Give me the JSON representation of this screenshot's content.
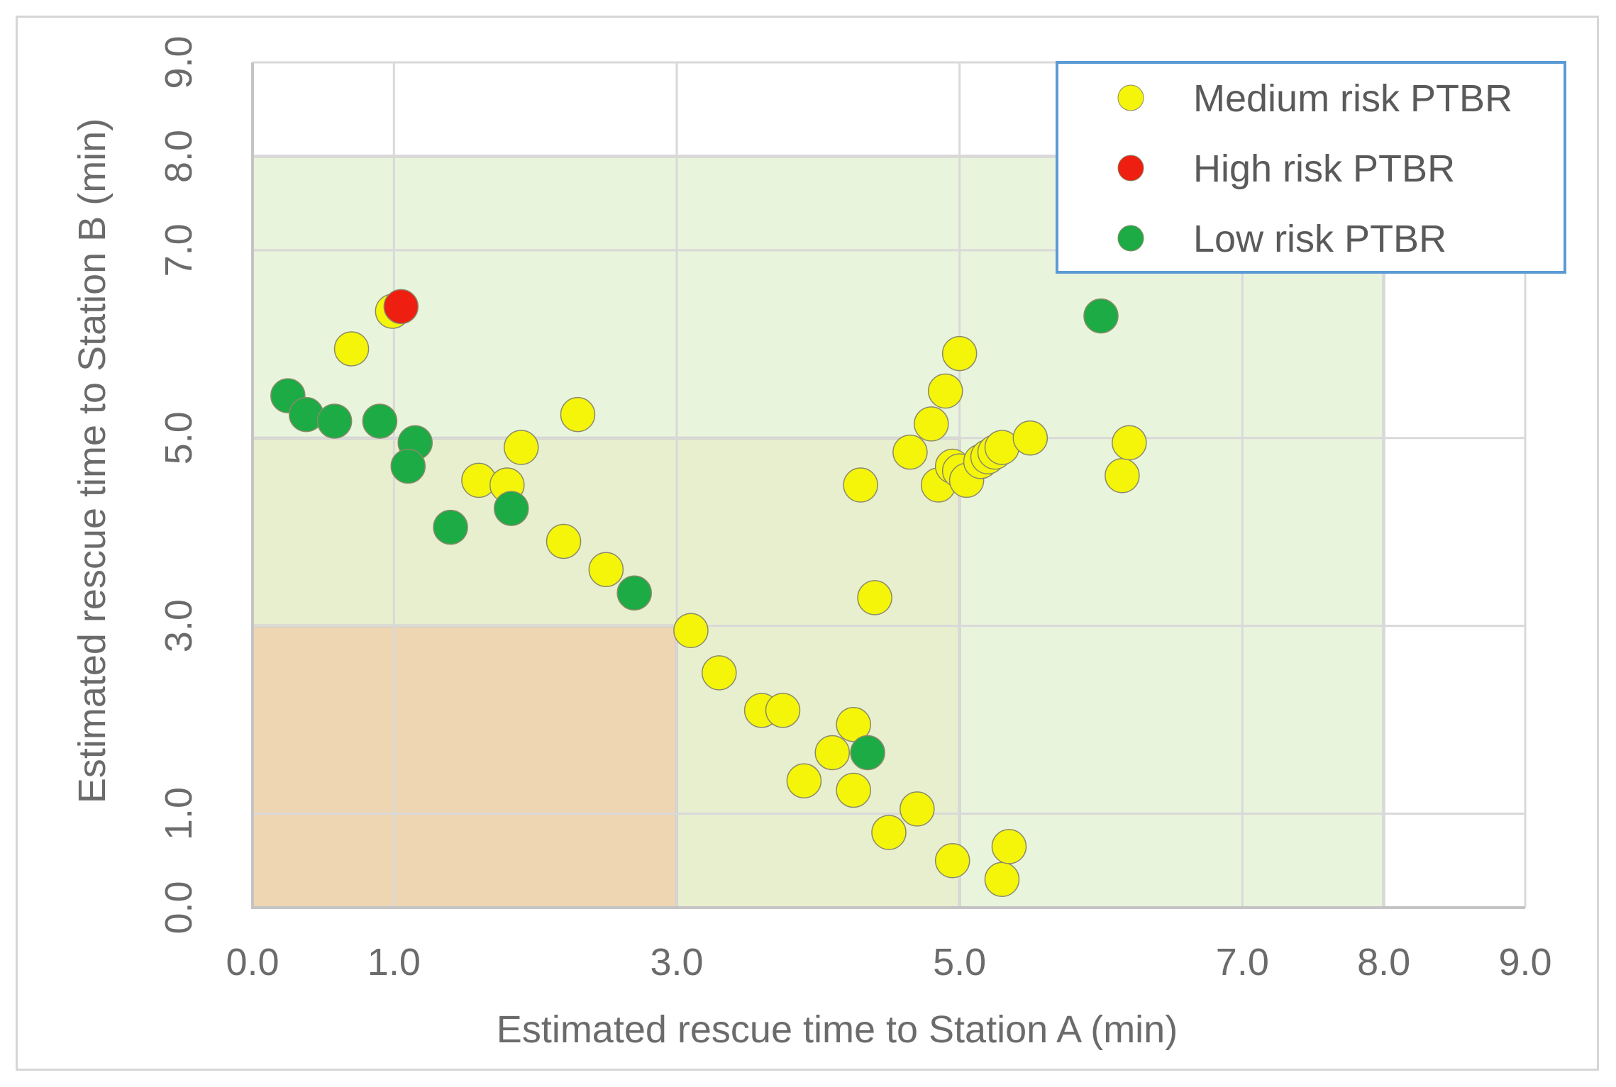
{
  "chart_data": {
    "type": "scatter",
    "xlabel": "Estimated rescue time to Station A (min)",
    "ylabel": "Estimated rescue time to Station B (min)",
    "xlim": [
      0,
      9
    ],
    "ylim": [
      0,
      9
    ],
    "x_ticks": [
      0,
      1,
      3,
      5,
      7,
      8,
      9
    ],
    "y_ticks": [
      0,
      1,
      3,
      5,
      7,
      8,
      9
    ],
    "tick_labels": [
      "0.0",
      "1.0",
      "3.0",
      "5.0",
      "7.0",
      "8.0",
      "9.0"
    ],
    "grid": true,
    "legend_position": "top-right",
    "zones": [
      {
        "name": "outer-zone",
        "x": [
          0,
          8
        ],
        "y": [
          0,
          8
        ],
        "color": "#e9f4dc"
      },
      {
        "name": "middle-zone",
        "x": [
          0,
          5
        ],
        "y": [
          0,
          5
        ],
        "color": "#e8efcf"
      },
      {
        "name": "inner-zone",
        "x": [
          0,
          3
        ],
        "y": [
          0,
          3
        ],
        "color": "#eed6b3"
      }
    ],
    "series": [
      {
        "name": "Medium risk PTBR",
        "color": "#f5f50a",
        "points": [
          [
            0.7,
            5.95
          ],
          [
            0.99,
            6.35
          ],
          [
            2.3,
            5.25
          ],
          [
            1.6,
            4.55
          ],
          [
            1.8,
            4.5
          ],
          [
            1.9,
            4.9
          ],
          [
            2.2,
            3.9
          ],
          [
            2.5,
            3.6
          ],
          [
            3.1,
            2.95
          ],
          [
            3.3,
            2.5
          ],
          [
            3.6,
            2.1
          ],
          [
            3.75,
            2.1
          ],
          [
            3.9,
            1.35
          ],
          [
            4.1,
            1.65
          ],
          [
            4.25,
            1.95
          ],
          [
            4.25,
            1.25
          ],
          [
            4.3,
            4.5
          ],
          [
            4.4,
            3.3
          ],
          [
            4.5,
            0.8
          ],
          [
            4.65,
            4.85
          ],
          [
            4.7,
            1.05
          ],
          [
            4.8,
            5.15
          ],
          [
            4.85,
            4.5
          ],
          [
            4.9,
            5.5
          ],
          [
            4.95,
            4.7
          ],
          [
            5.0,
            5.9
          ],
          [
            5.0,
            4.65
          ],
          [
            5.05,
            4.55
          ],
          [
            5.15,
            4.75
          ],
          [
            5.2,
            4.8
          ],
          [
            5.25,
            4.85
          ],
          [
            5.3,
            4.9
          ],
          [
            5.5,
            5.0
          ],
          [
            4.95,
            0.5
          ],
          [
            5.3,
            0.3
          ],
          [
            5.35,
            0.65
          ],
          [
            6.15,
            4.6
          ],
          [
            6.2,
            4.95
          ]
        ]
      },
      {
        "name": "High risk PTBR",
        "color": "#ee1e10",
        "points": [
          [
            1.05,
            6.4
          ]
        ]
      },
      {
        "name": "Low risk PTBR",
        "color": "#1cab44",
        "points": [
          [
            0.25,
            5.45
          ],
          [
            0.38,
            5.25
          ],
          [
            0.58,
            5.18
          ],
          [
            0.9,
            5.18
          ],
          [
            1.15,
            4.95
          ],
          [
            1.1,
            4.7
          ],
          [
            1.4,
            4.05
          ],
          [
            1.83,
            4.25
          ],
          [
            2.7,
            3.35
          ],
          [
            4.35,
            1.65
          ],
          [
            6.0,
            6.3
          ]
        ]
      }
    ]
  }
}
